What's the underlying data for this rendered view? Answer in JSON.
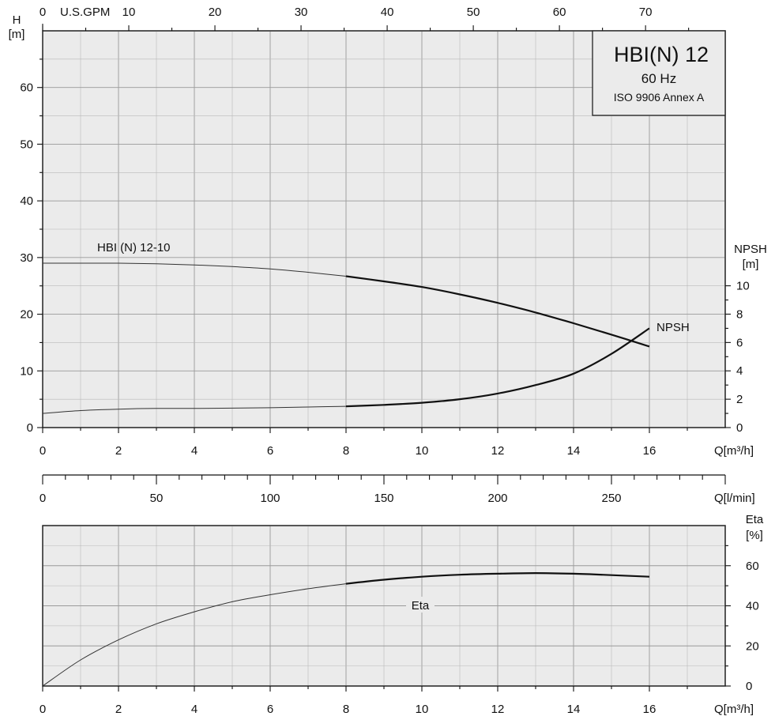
{
  "chart_data": [
    {
      "type": "line",
      "title": "HBI(N) 12",
      "subtitle": "60 Hz",
      "subtitle2": "ISO 9906 Annex A",
      "x_axis": {
        "label": "Q[m³/h]",
        "range": [
          0,
          18
        ],
        "ticks": [
          0,
          2,
          4,
          6,
          8,
          10,
          12,
          14,
          16
        ]
      },
      "x_top_axis": {
        "label": "U.S.GPM",
        "ticks": [
          "0",
          "10",
          "20",
          "30",
          "40",
          "50",
          "60",
          "70"
        ]
      },
      "y_left_axis": {
        "label": "H",
        "unit": "[m]",
        "range": [
          0,
          70
        ],
        "ticks": [
          "0",
          "10",
          "20",
          "30",
          "40",
          "50",
          "60"
        ]
      },
      "y_right_axis": {
        "label": "NPSH",
        "unit": "[m]",
        "range": [
          0,
          10
        ],
        "ticks": [
          "0",
          "2",
          "4",
          "6",
          "8",
          "10"
        ]
      },
      "series": [
        {
          "name": "HBI (N) 12-10",
          "axis": "left",
          "x": [
            0,
            1,
            2,
            3,
            4,
            5,
            6,
            7,
            8,
            9,
            10,
            11,
            12,
            13,
            14,
            15,
            16
          ],
          "y": [
            29,
            29,
            29,
            28.9,
            28.7,
            28.4,
            28,
            27.4,
            26.7,
            25.8,
            24.8,
            23.5,
            22,
            20.3,
            18.4,
            16.4,
            14.3
          ],
          "highlight_from": 8
        },
        {
          "name": "NPSH",
          "axis": "right",
          "x": [
            0,
            1,
            2,
            3,
            4,
            5,
            6,
            7,
            8,
            9,
            10,
            11,
            12,
            13,
            14,
            15,
            16
          ],
          "y": [
            1,
            1.2,
            1.3,
            1.35,
            1.35,
            1.37,
            1.4,
            1.45,
            1.5,
            1.6,
            1.75,
            2,
            2.4,
            3,
            3.8,
            5.2,
            7
          ],
          "highlight_from": 8
        }
      ]
    },
    {
      "type": "line",
      "x_axis": {
        "label": "Q[m³/h]",
        "range": [
          0,
          18
        ],
        "ticks": [
          0,
          2,
          4,
          6,
          8,
          10,
          12,
          14,
          16
        ]
      },
      "x_lmin_axis": {
        "label": "Q[l/min]",
        "ticks": [
          "0",
          "50",
          "100",
          "150",
          "200",
          "250"
        ]
      },
      "y_right_axis": {
        "label": "Eta",
        "unit": "[%]",
        "range": [
          0,
          80
        ],
        "ticks": [
          "0",
          "20",
          "40",
          "60"
        ]
      },
      "series": [
        {
          "name": "Eta",
          "axis": "right",
          "x": [
            0,
            1,
            2,
            3,
            4,
            5,
            6,
            7,
            8,
            9,
            10,
            11,
            12,
            13,
            14,
            15,
            16
          ],
          "y": [
            0,
            13,
            23,
            31,
            37,
            42,
            45.5,
            48.5,
            51,
            53,
            54.5,
            55.5,
            56,
            56.3,
            56,
            55.3,
            54.5
          ],
          "highlight_from": 8
        }
      ]
    }
  ]
}
